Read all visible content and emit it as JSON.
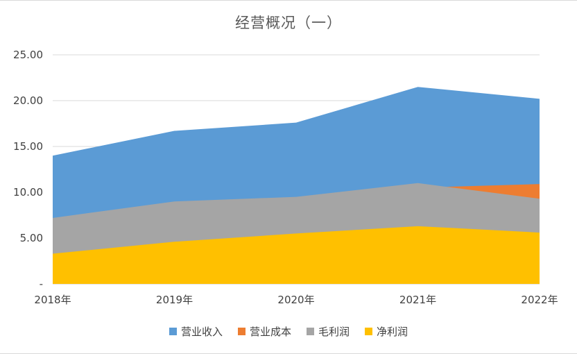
{
  "title": "经营概况（一）",
  "background": "#FFFFFF",
  "chart_data": {
    "type": "area",
    "overlapping": true,
    "title": "经营概况（一）",
    "categories": [
      "2018年",
      "2019年",
      "2020年",
      "2021年",
      "2022年"
    ],
    "series": [
      {
        "key": "revenue",
        "name": "营业收入",
        "color": "#5B9BD5",
        "values": [
          14.0,
          16.7,
          17.6,
          21.5,
          20.2
        ]
      },
      {
        "key": "operating-cost",
        "name": "营业成本",
        "color": "#ED7D31",
        "values": [
          6.8,
          7.7,
          8.1,
          10.5,
          10.9
        ]
      },
      {
        "key": "gross-profit",
        "name": "毛利润",
        "color": "#A5A5A5",
        "values": [
          7.2,
          9.0,
          9.5,
          11.0,
          9.3
        ]
      },
      {
        "key": "net-profit",
        "name": "净利润",
        "color": "#FFC000",
        "values": [
          3.3,
          4.6,
          5.5,
          6.3,
          5.6
        ]
      }
    ],
    "ylim": [
      0,
      25
    ],
    "ytick_step": 5,
    "ytick_labels": [
      "-",
      "5.00",
      "10.00",
      "15.00",
      "20.00",
      "25.00"
    ],
    "grid": true,
    "gridline_color": "#D9D9D9",
    "axis_line_color": "#C9C9C9",
    "legend_position": "bottom"
  }
}
